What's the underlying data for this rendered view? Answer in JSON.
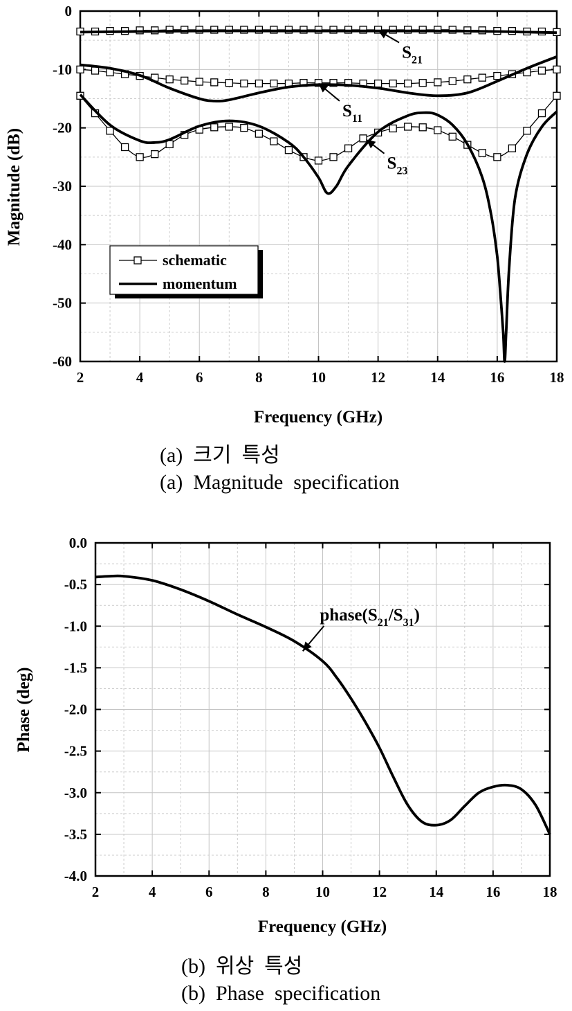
{
  "chart_data": [
    {
      "type": "line",
      "panel": "a",
      "xlabel": "Frequency (GHz)",
      "ylabel": "Magnitude (dB)",
      "xlim": [
        2,
        18
      ],
      "ylim": [
        -60,
        0
      ],
      "xticks": [
        "2",
        "4",
        "6",
        "8",
        "10",
        "12",
        "14",
        "16",
        "18"
      ],
      "yticks": [
        "0",
        "-10",
        "-20",
        "-30",
        "-40",
        "-50",
        "-60"
      ],
      "grid": true,
      "legend_position": "bottom-left",
      "legend": [
        "schematic",
        "momentum"
      ],
      "series": [
        {
          "trace": "S21",
          "style": "schematic",
          "marker": "square",
          "x": [
            2,
            2.5,
            3,
            3.5,
            4,
            4.5,
            5,
            5.5,
            6,
            6.5,
            7,
            7.5,
            8,
            8.5,
            9,
            9.5,
            10,
            10.5,
            11,
            11.5,
            12,
            12.5,
            13,
            13.5,
            14,
            14.5,
            15,
            15.5,
            16,
            16.5,
            17,
            17.5,
            18
          ],
          "y": [
            -3.5,
            -3.5,
            -3.4,
            -3.4,
            -3.3,
            -3.3,
            -3.2,
            -3.2,
            -3.2,
            -3.2,
            -3.2,
            -3.2,
            -3.2,
            -3.2,
            -3.2,
            -3.2,
            -3.2,
            -3.2,
            -3.2,
            -3.2,
            -3.2,
            -3.2,
            -3.2,
            -3.2,
            -3.2,
            -3.2,
            -3.3,
            -3.3,
            -3.4,
            -3.4,
            -3.5,
            -3.5,
            -3.6
          ]
        },
        {
          "trace": "S11",
          "style": "schematic",
          "marker": "square",
          "x": [
            2,
            2.5,
            3,
            3.5,
            4,
            4.5,
            5,
            5.5,
            6,
            6.5,
            7,
            7.5,
            8,
            8.5,
            9,
            9.5,
            10,
            10.5,
            11,
            11.5,
            12,
            12.5,
            13,
            13.5,
            14,
            14.5,
            15,
            15.5,
            16,
            16.5,
            17,
            17.5,
            18
          ],
          "y": [
            -10.0,
            -10.2,
            -10.5,
            -10.8,
            -11.1,
            -11.4,
            -11.7,
            -11.9,
            -12.1,
            -12.2,
            -12.3,
            -12.4,
            -12.4,
            -12.4,
            -12.4,
            -12.3,
            -12.3,
            -12.3,
            -12.3,
            -12.4,
            -12.4,
            -12.4,
            -12.4,
            -12.3,
            -12.2,
            -12.0,
            -11.7,
            -11.4,
            -11.1,
            -10.8,
            -10.5,
            -10.2,
            -10.0
          ]
        },
        {
          "trace": "S23",
          "style": "schematic",
          "marker": "square",
          "x": [
            2,
            2.5,
            3,
            3.5,
            4,
            4.5,
            5,
            5.5,
            6,
            6.5,
            7,
            7.5,
            8,
            8.5,
            9,
            9.5,
            10,
            10.5,
            11,
            11.5,
            12,
            12.5,
            13,
            13.5,
            14,
            14.5,
            15,
            15.5,
            16,
            16.5,
            17,
            17.5,
            18
          ],
          "y": [
            -14.5,
            -17.5,
            -20.5,
            -23.3,
            -25.0,
            -24.5,
            -22.8,
            -21.2,
            -20.3,
            -19.9,
            -19.8,
            -20.0,
            -21.0,
            -22.3,
            -23.8,
            -25.0,
            -25.6,
            -25.0,
            -23.5,
            -21.8,
            -20.8,
            -20.1,
            -19.8,
            -19.9,
            -20.4,
            -21.5,
            -22.9,
            -24.3,
            -25.0,
            -23.5,
            -20.5,
            -17.5,
            -14.5
          ]
        },
        {
          "trace": "S21",
          "style": "momentum",
          "x": [
            2,
            4,
            6,
            8,
            10,
            12,
            14,
            16,
            17,
            18
          ],
          "y": [
            -3.6,
            -3.5,
            -3.4,
            -3.4,
            -3.4,
            -3.4,
            -3.4,
            -3.5,
            -3.6,
            -3.7
          ]
        },
        {
          "trace": "S11",
          "style": "momentum",
          "x": [
            2,
            3,
            4,
            5,
            6,
            6.5,
            7,
            8,
            9,
            10,
            11,
            12,
            13,
            14,
            15,
            16,
            17,
            18
          ],
          "y": [
            -9.2,
            -9.8,
            -11.0,
            -13.2,
            -15.0,
            -15.4,
            -15.2,
            -14.0,
            -13.0,
            -12.6,
            -12.7,
            -13.2,
            -14.0,
            -14.5,
            -14.0,
            -12.0,
            -9.8,
            -7.8
          ]
        },
        {
          "trace": "S23",
          "style": "momentum",
          "x": [
            2,
            3,
            4,
            4.5,
            5,
            6,
            7,
            8,
            9,
            9.5,
            10,
            10.3,
            10.6,
            11,
            12,
            13,
            13.6,
            14,
            14.5,
            15,
            15.5,
            15.8,
            16,
            16.1,
            16.2,
            16.25,
            16.3,
            16.4,
            16.6,
            17,
            17.5,
            18
          ],
          "y": [
            -14.3,
            -19.5,
            -22.2,
            -22.5,
            -22.0,
            -19.7,
            -18.8,
            -19.7,
            -22.5,
            -25.0,
            -28.5,
            -31.2,
            -30.0,
            -26.5,
            -20.7,
            -17.9,
            -17.4,
            -17.8,
            -19.5,
            -22.8,
            -28.5,
            -35.0,
            -42.0,
            -48.0,
            -55.0,
            -60.0,
            -55.0,
            -44.0,
            -32.0,
            -24.5,
            -19.8,
            -17.2
          ]
        }
      ],
      "annotations": [
        {
          "base": "S",
          "sub": "21",
          "x": 12.8,
          "y": -8.0,
          "arrow_to": [
            12.0,
            -3.3
          ]
        },
        {
          "base": "S",
          "sub": "11",
          "x": 10.8,
          "y": -18.0,
          "arrow_to": [
            10.0,
            -12.4
          ]
        },
        {
          "base": "S",
          "sub": "23",
          "x": 12.3,
          "y": -27.0,
          "arrow_to": [
            11.6,
            -22.0
          ]
        }
      ],
      "caption_ko": "(a)  크기  특성",
      "caption_en": "(a)  Magnitude  specification"
    },
    {
      "type": "line",
      "panel": "b",
      "xlabel": "Frequency (GHz)",
      "ylabel": "Phase (deg)",
      "xlim": [
        2,
        18
      ],
      "ylim": [
        -4.0,
        0.0
      ],
      "xticks": [
        "2",
        "4",
        "6",
        "8",
        "10",
        "12",
        "14",
        "16",
        "18"
      ],
      "yticks": [
        "0.0",
        "-0.5",
        "-1.0",
        "-1.5",
        "-2.0",
        "-2.5",
        "-3.0",
        "-3.5",
        "-4.0"
      ],
      "grid": true,
      "series": [
        {
          "trace": "phase(S21/S31)",
          "x": [
            2,
            2.5,
            3,
            4,
            5,
            6,
            7,
            8,
            9,
            10,
            10.5,
            11,
            11.5,
            12,
            12.5,
            13,
            13.5,
            14,
            14.5,
            15,
            15.5,
            16,
            16.5,
            17,
            17.5,
            18
          ],
          "y": [
            -0.41,
            -0.4,
            -0.4,
            -0.45,
            -0.56,
            -0.7,
            -0.86,
            -1.01,
            -1.18,
            -1.42,
            -1.62,
            -1.87,
            -2.15,
            -2.46,
            -2.82,
            -3.15,
            -3.35,
            -3.39,
            -3.33,
            -3.16,
            -3.0,
            -2.93,
            -2.91,
            -2.96,
            -3.15,
            -3.5
          ]
        }
      ],
      "annotation": {
        "prefix": "phase(S",
        "sub1": "21",
        "mid": "/S",
        "sub2": "31",
        "suffix": ")",
        "x": 9.9,
        "y": -0.93,
        "arrow_to": [
          9.3,
          -1.3
        ]
      },
      "caption_ko": "(b)  위상  특성",
      "caption_en": "(b)  Phase  specification"
    }
  ]
}
